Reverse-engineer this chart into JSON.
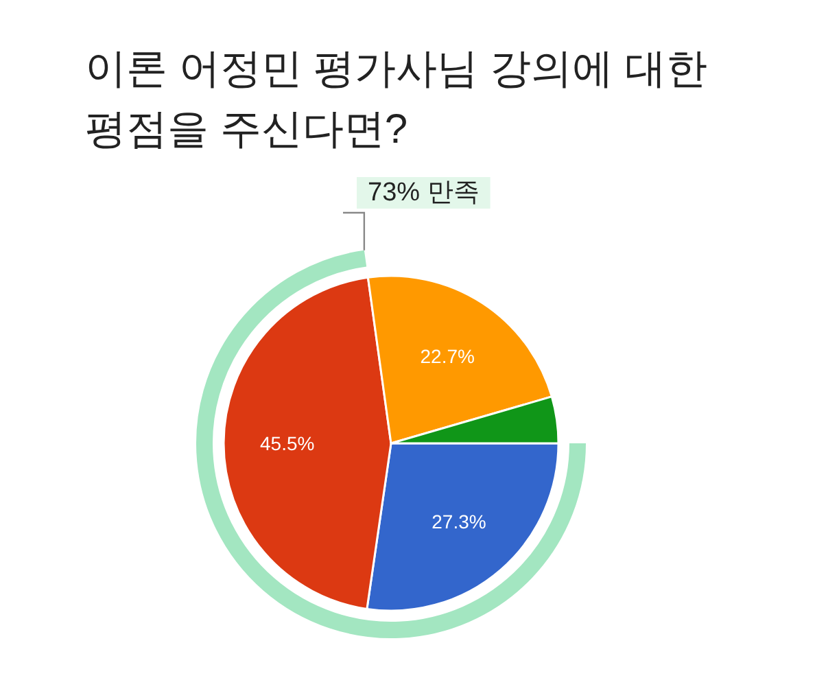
{
  "chart_data": {
    "type": "pie",
    "title": "이론 어정민 평가사님 강의에 대한 평점을 주신다면?",
    "categories": [
      null,
      null,
      null,
      null
    ],
    "values": [
      27.3,
      45.5,
      22.7,
      4.5
    ],
    "colors": [
      "#3366cc",
      "#dc3912",
      "#ff9900",
      "#109618"
    ],
    "value_labels": [
      "27.3%",
      "45.5%",
      "22.7%",
      null
    ],
    "annotations": [
      "73% 만족"
    ]
  }
}
